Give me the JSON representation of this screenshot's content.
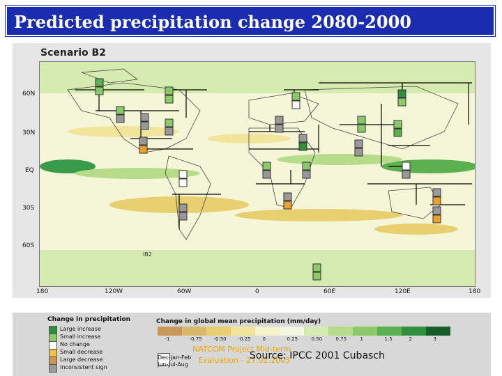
{
  "slide": {
    "title": "Predicted precipitation change 2080-2000",
    "source": "Source: IPCC 2001 Cubasch",
    "footer_line1": "NATCOM Project Mid-term",
    "footer_line2": "Evaluation - 27.02.2003"
  },
  "map": {
    "scenario": "Scenario B2",
    "inset_label": "IB2",
    "lat_labels": [
      "60N",
      "30N",
      "EQ",
      "30S",
      "60S"
    ],
    "lon_labels": [
      "180",
      "120W",
      "60W",
      "0",
      "60E",
      "120E",
      "180"
    ]
  },
  "legend": {
    "symbols_title": "Change in precipitation",
    "symbols": [
      "Large increase",
      "Small increase",
      "No change",
      "Small decrease",
      "Large decrease",
      "Inconsistent sign"
    ],
    "seasons": [
      "Dec-Jan-Feb",
      "Jun-Jul-Aug"
    ],
    "colorbar_title": "Change in global mean precipitation (mm/day)",
    "colorbar_ticks": [
      "-1",
      "-0.75",
      "-0.50",
      "-0.25",
      "0",
      "0.25",
      "0.50",
      "0.75",
      "1",
      "1.5",
      "2",
      "3"
    ],
    "colorbar_colors": [
      "#c9975a",
      "#d9b86a",
      "#e8d070",
      "#f0e59a",
      "#f7f3cf",
      "#f4f8e2",
      "#d6ebb0",
      "#b6dc8a",
      "#8cc96a",
      "#5bb14f",
      "#2f8f3c",
      "#155e2a"
    ]
  }
}
